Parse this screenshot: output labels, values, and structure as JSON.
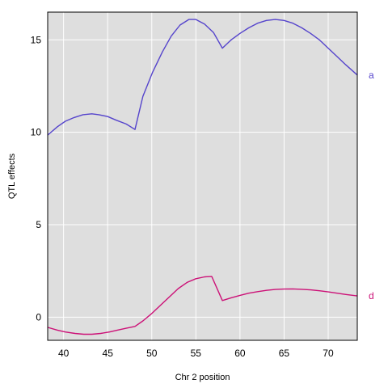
{
  "chart_data": {
    "type": "line",
    "xlabel": "Chr 2 position",
    "ylabel": "QTL effects",
    "xlim": [
      38.2,
      73.3
    ],
    "ylim": [
      -1.25,
      16.5
    ],
    "xticks": [
      40,
      45,
      50,
      55,
      60,
      65,
      70
    ],
    "yticks": [
      0,
      5,
      10,
      15
    ],
    "grid": true,
    "background": "#dedede",
    "grid_color": "#ffffff",
    "series": [
      {
        "name": "a",
        "color": "#5544cc",
        "x": [
          38.2,
          39.3,
          40.2,
          41.2,
          42.2,
          43.2,
          44.0,
          45.0,
          46.0,
          47.1,
          48.1,
          49.0,
          50.1,
          51.2,
          52.2,
          53.2,
          54.2,
          55.0,
          56.0,
          57.0,
          58.0,
          59.0,
          60.0,
          61.0,
          62.0,
          63.0,
          64.0,
          65.0,
          66.0,
          67.0,
          68.0,
          69.0,
          70.0,
          71.0,
          72.0,
          73.3
        ],
        "values": [
          9.85,
          10.3,
          10.6,
          10.8,
          10.95,
          11.0,
          10.95,
          10.85,
          10.65,
          10.45,
          10.15,
          11.95,
          13.25,
          14.35,
          15.2,
          15.8,
          16.1,
          16.1,
          15.85,
          15.4,
          14.55,
          15.0,
          15.35,
          15.65,
          15.9,
          16.05,
          16.1,
          16.05,
          15.9,
          15.65,
          15.35,
          15.0,
          14.55,
          14.1,
          13.65,
          13.1
        ]
      },
      {
        "name": "d",
        "color": "#cc1177",
        "x": [
          38.2,
          39.3,
          40.2,
          41.3,
          42.3,
          43.2,
          44.2,
          45.2,
          46.1,
          47.1,
          48.1,
          49.0,
          50.0,
          51.0,
          52.0,
          53.0,
          54.0,
          55.0,
          56.0,
          56.8,
          58.0,
          59.0,
          60.0,
          61.0,
          62.0,
          63.0,
          64.0,
          65.0,
          66.0,
          67.0,
          68.0,
          69.0,
          70.0,
          71.0,
          72.0,
          73.3
        ],
        "values": [
          -0.55,
          -0.7,
          -0.8,
          -0.88,
          -0.92,
          -0.92,
          -0.88,
          -0.8,
          -0.7,
          -0.6,
          -0.5,
          -0.2,
          0.2,
          0.65,
          1.1,
          1.55,
          1.88,
          2.08,
          2.18,
          2.2,
          0.9,
          1.05,
          1.18,
          1.3,
          1.38,
          1.45,
          1.5,
          1.52,
          1.53,
          1.51,
          1.48,
          1.43,
          1.37,
          1.3,
          1.23,
          1.15
        ]
      }
    ]
  }
}
